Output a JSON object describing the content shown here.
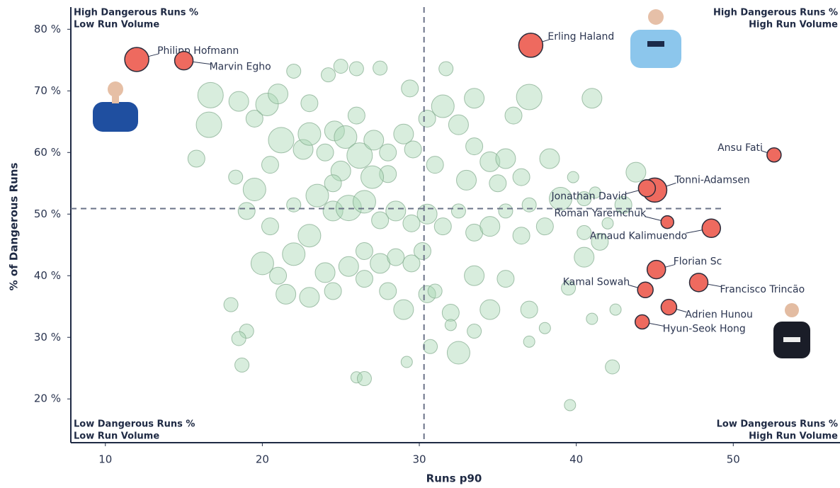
{
  "chart_data": {
    "type": "scatter",
    "x_label": "Runs p90",
    "y_label": "% of Dangerous Runs",
    "xlim": [
      7.8,
      56.8
    ],
    "ylim": [
      12.9,
      83.6
    ],
    "xticks": [
      10,
      20,
      30,
      40,
      50
    ],
    "yticks": [
      {
        "value": 20,
        "label": "20 %"
      },
      {
        "value": 30,
        "label": "30 %"
      },
      {
        "value": 40,
        "label": "40 %"
      },
      {
        "value": 50,
        "label": "50 %"
      },
      {
        "value": 60,
        "label": "60 %"
      },
      {
        "value": 70,
        "label": "70 %"
      },
      {
        "value": 80,
        "label": "80 %"
      }
    ],
    "xline": 30.3,
    "yline": 50.9,
    "quadrants": {
      "top_left": [
        "High Dangerous Runs %",
        "Low Run Volume"
      ],
      "top_right": [
        "High Dangerous Runs %",
        "High Run Volume"
      ],
      "bottom_left": [
        "Low Dangerous Runs %",
        "Low Run Volume"
      ],
      "bottom_right": [
        "Low Dangerous Runs %",
        "High Run Volume"
      ]
    },
    "series": [
      {
        "color": "#a8d8b4",
        "x": [
          16.7,
          16.6,
          18.5,
          19.5,
          20.3,
          21.0,
          22.0,
          23.0,
          24.2,
          25.0,
          26.0,
          27.5,
          29.4,
          31.7,
          33.5,
          36.0,
          37.0,
          41.0,
          15.8,
          18.3,
          19.5,
          20.5,
          21.2,
          22.6,
          23.0,
          24.0,
          24.6,
          25.3,
          26.2,
          27.1,
          28.0,
          29.0,
          29.6,
          30.5,
          31.5,
          32.5,
          33.5,
          34.5,
          35.5,
          36.5,
          38.3,
          39.8,
          40.5,
          41.2,
          43.8,
          43.0,
          39.0,
          42.0,
          37.0,
          35.0,
          19.0,
          20.5,
          22.0,
          23.5,
          24.5,
          25.5,
          26.5,
          27.5,
          28.5,
          29.5,
          30.5,
          31.5,
          32.5,
          33.5,
          34.5,
          35.5,
          36.5,
          38.0,
          40.5,
          41.5,
          20.0,
          21.0,
          22.0,
          23.0,
          24.0,
          25.5,
          26.5,
          27.5,
          28.5,
          29.5,
          21.5,
          23.0,
          24.5,
          26.5,
          28.0,
          29.0,
          30.5,
          32.0,
          33.5,
          34.5,
          35.5,
          37.0,
          38.0,
          39.5,
          40.5,
          41.0,
          42.5,
          18.0,
          19.0,
          18.5,
          18.7,
          26.0,
          26.5,
          29.2,
          32.5,
          30.7,
          32.0,
          33.5,
          37.0,
          39.6,
          42.3,
          31.0,
          30.2,
          28.0,
          25.0,
          27.0,
          24.5,
          33.0,
          26.0,
          31.0
        ],
        "values": [
          69.3,
          64.5,
          68.3,
          65.5,
          67.8,
          69.5,
          73.2,
          68.0,
          72.6,
          74.0,
          73.6,
          73.7,
          70.4,
          73.6,
          68.8,
          66.0,
          69.0,
          68.8,
          59.0,
          56.0,
          54.0,
          58.0,
          62.0,
          60.5,
          63.0,
          60.0,
          63.5,
          62.5,
          59.5,
          62.0,
          60.0,
          63.0,
          60.5,
          65.5,
          67.5,
          64.5,
          61.0,
          58.5,
          59.0,
          56.0,
          59.0,
          56.0,
          52.5,
          53.5,
          56.8,
          51.5,
          52.5,
          48.5,
          51.5,
          55.0,
          50.5,
          48.0,
          51.5,
          53.0,
          50.5,
          51.0,
          52.0,
          49.0,
          50.5,
          48.5,
          50.0,
          48.0,
          50.5,
          47.0,
          48.0,
          50.5,
          46.5,
          48.0,
          47.0,
          45.5,
          42.0,
          40.0,
          43.5,
          46.5,
          40.5,
          41.5,
          44.0,
          42.0,
          43.0,
          42.0,
          37.0,
          36.5,
          37.5,
          39.5,
          37.5,
          34.5,
          37.0,
          34.0,
          40.0,
          34.5,
          39.5,
          34.5,
          31.5,
          38.0,
          43.0,
          33.0,
          34.5,
          35.3,
          31.0,
          29.8,
          25.5,
          23.5,
          23.3,
          26.0,
          27.5,
          28.5,
          32.0,
          31.0,
          29.3,
          19.0,
          25.2,
          37.5,
          44.0,
          56.5,
          57.0,
          56.0,
          55.0,
          55.5,
          66.0,
          58.0
        ],
        "sizes": [
          9,
          9,
          7,
          6,
          8,
          7,
          5,
          6,
          5,
          5,
          5,
          5,
          6,
          5,
          7,
          6,
          9,
          7,
          6,
          5,
          8,
          6,
          9,
          7,
          8,
          6,
          7,
          8,
          9,
          7,
          6,
          7,
          6,
          6,
          8,
          7,
          6,
          7,
          7,
          6,
          7,
          4,
          5,
          4,
          7,
          6,
          8,
          4,
          5,
          6,
          6,
          6,
          5,
          8,
          7,
          9,
          8,
          6,
          7,
          6,
          7,
          6,
          5,
          6,
          7,
          5,
          6,
          6,
          5,
          6,
          8,
          6,
          8,
          8,
          7,
          7,
          6,
          7,
          6,
          6,
          7,
          7,
          6,
          6,
          6,
          7,
          6,
          6,
          7,
          7,
          6,
          6,
          4,
          5,
          7,
          4,
          4,
          5,
          5,
          5,
          5,
          4,
          5,
          4,
          8,
          5,
          4,
          5,
          4,
          4,
          5,
          5,
          6,
          6,
          7,
          8,
          6,
          7,
          6,
          6
        ]
      },
      {
        "color": "#ee6a5f",
        "labels": [
          "Erling Haland",
          "Philipp Hofmann",
          "Marvin Egho",
          "Ansu Fati",
          "Tonni-Adamsen",
          "Jonathan David",
          "Roman Yaremchuk",
          "Arnaud Kalimuendo",
          "Florian Sc",
          "Francisco Trincão",
          "Kamal Sowah",
          "Adrien Hunou",
          "Hyun-Seok Hong"
        ],
        "x": [
          37.1,
          12.0,
          15.0,
          52.6,
          45.0,
          44.5,
          45.8,
          48.6,
          45.1,
          47.8,
          44.4,
          45.9,
          44.2
        ],
        "values": [
          77.4,
          75.1,
          74.9,
          59.6,
          53.9,
          54.2,
          48.7,
          47.7,
          41.0,
          38.9,
          37.7,
          34.9,
          32.5
        ],
        "sizes": [
          17,
          17,
          13,
          10,
          17,
          12,
          9,
          13,
          13,
          13,
          11,
          11,
          10
        ]
      }
    ]
  }
}
